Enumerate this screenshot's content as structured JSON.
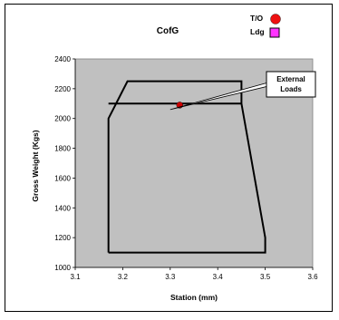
{
  "chart_data": {
    "type": "line",
    "title": "CofG",
    "xlabel": "Station (mm)",
    "ylabel": "Gross Weight (Kgs)",
    "xlim": [
      3.1,
      3.6
    ],
    "ylim": [
      1000,
      2400
    ],
    "x_ticks": [
      "3.1",
      "3.2",
      "3.3",
      "3.4",
      "3.5",
      "3.6"
    ],
    "y_ticks": [
      "1000",
      "1200",
      "1400",
      "1600",
      "1800",
      "2000",
      "2200",
      "2400"
    ],
    "plot_background": "#c0c0c0",
    "grid": false,
    "envelope": {
      "x": [
        3.17,
        3.17,
        3.21,
        3.45,
        3.45,
        3.5,
        3.5,
        3.17
      ],
      "y": [
        1100,
        2000,
        2250,
        2250,
        2100,
        1200,
        1100,
        1100
      ]
    },
    "inner_line": {
      "x": [
        3.17,
        3.45
      ],
      "y": [
        2100,
        2100
      ]
    },
    "points": [
      {
        "name": "T/O",
        "x": 3.32,
        "y": 2090,
        "color": "#cc0000",
        "marker": "circle"
      }
    ],
    "legend": {
      "position": "top-right",
      "items": [
        {
          "label": "T/O",
          "color": "#ee1111",
          "marker": "circle"
        },
        {
          "label": "Ldg",
          "color": "#ff33ff",
          "marker": "square"
        }
      ]
    },
    "annotation": {
      "text_lines": [
        "External",
        "Loads"
      ],
      "points_to": {
        "x": 3.3,
        "y": 2060
      }
    }
  }
}
